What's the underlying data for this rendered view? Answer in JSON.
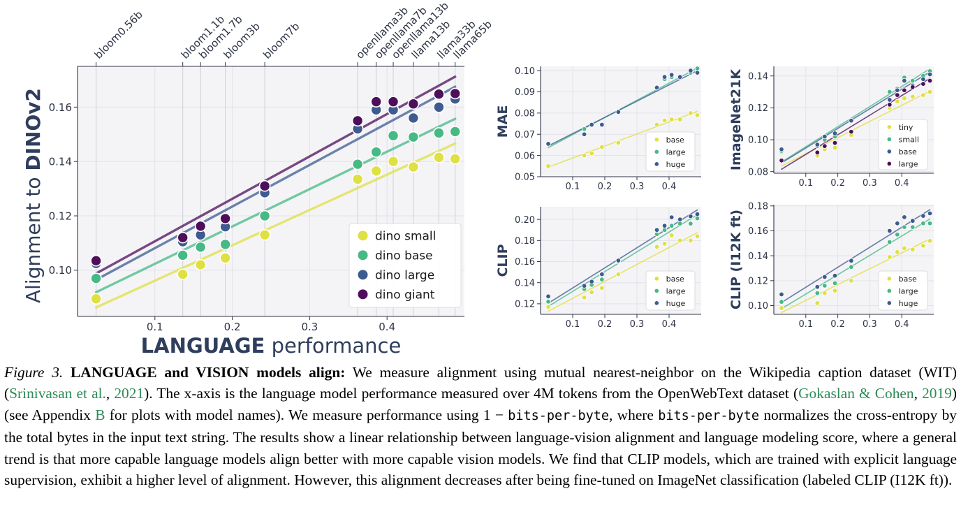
{
  "chart_data": [
    {
      "type": "scatter",
      "id": "main",
      "title": "",
      "xlabel_bold": "LANGUAGE",
      "xlabel_rest": " performance",
      "ylabel_prefix": "Alignment to ",
      "ylabel_bold": "DINOv2",
      "xlim": [
        0.0,
        0.5
      ],
      "ylim": [
        0.083,
        0.175
      ],
      "xticks": [
        0.1,
        0.2,
        0.3,
        0.4
      ],
      "xtick_labels": [
        "0.1",
        "0.2",
        "0.3",
        "0.4"
      ],
      "yticks": [
        0.1,
        0.12,
        0.14,
        0.16
      ],
      "ytick_labels": [
        "0.10",
        "0.12",
        "0.14",
        "0.16"
      ],
      "legend_position": "bottom-right",
      "top_models": [
        {
          "name": "bloom0.56b",
          "x": 0.024
        },
        {
          "name": "bloom1.1b",
          "x": 0.136
        },
        {
          "name": "bloom1.7b",
          "x": 0.159
        },
        {
          "name": "bloom3b",
          "x": 0.191
        },
        {
          "name": "bloom7b",
          "x": 0.242
        },
        {
          "name": "openllama3b",
          "x": 0.362
        },
        {
          "name": "openllama7b",
          "x": 0.386
        },
        {
          "name": "openllama13b",
          "x": 0.408
        },
        {
          "name": "llama13b",
          "x": 0.434
        },
        {
          "name": "llama33b",
          "x": 0.467
        },
        {
          "name": "llama65b",
          "x": 0.488
        }
      ],
      "x": [
        0.024,
        0.136,
        0.159,
        0.191,
        0.242,
        0.362,
        0.386,
        0.408,
        0.434,
        0.467,
        0.488
      ],
      "series": [
        {
          "name": "dino small",
          "color": "#dfe044",
          "values": [
            0.0895,
            0.0985,
            0.102,
            0.1045,
            0.113,
            0.1335,
            0.1365,
            0.14,
            0.138,
            0.1415,
            0.141
          ],
          "fit": [
            0.0863,
            0.1466
          ]
        },
        {
          "name": "dino base",
          "color": "#46b985",
          "values": [
            0.097,
            0.1055,
            0.1085,
            0.1095,
            0.12,
            0.139,
            0.1435,
            0.1495,
            0.149,
            0.1505,
            0.151
          ],
          "fit": [
            0.0919,
            0.1557
          ]
        },
        {
          "name": "dino large",
          "color": "#3e5b8f",
          "values": [
            0.1025,
            0.1105,
            0.113,
            0.116,
            0.1285,
            0.152,
            0.159,
            0.159,
            0.156,
            0.16,
            0.163
          ],
          "fit": [
            0.0965,
            0.1675
          ]
        },
        {
          "name": "dino giant",
          "color": "#4e0f5a",
          "values": [
            0.1035,
            0.112,
            0.1162,
            0.119,
            0.131,
            0.155,
            0.162,
            0.162,
            0.1612,
            0.1648,
            0.165
          ],
          "fit": [
            0.0988,
            0.1712
          ]
        }
      ]
    },
    {
      "type": "scatter",
      "id": "mae",
      "ylabel": "MAE",
      "xlim": [
        0.0,
        0.5
      ],
      "ylim": [
        0.05,
        0.102
      ],
      "xticks": [
        0.1,
        0.2,
        0.3,
        0.4
      ],
      "xtick_labels": [
        "0.1",
        "0.2",
        "0.3",
        "0.4"
      ],
      "yticks": [
        0.05,
        0.06,
        0.07,
        0.08,
        0.09,
        0.1
      ],
      "ytick_labels": [
        "0.05",
        "0.06",
        "0.07",
        "0.08",
        "0.09",
        "0.10"
      ],
      "legend_position": "bottom-right",
      "x": [
        0.024,
        0.136,
        0.159,
        0.191,
        0.242,
        0.362,
        0.386,
        0.408,
        0.434,
        0.467,
        0.488
      ],
      "series": [
        {
          "name": "base",
          "color": "#dfe044",
          "values": [
            0.055,
            0.06,
            0.061,
            0.064,
            0.066,
            0.0745,
            0.0765,
            0.077,
            0.077,
            0.08,
            0.079
          ],
          "fit": [
            0.0545,
            0.0808
          ]
        },
        {
          "name": "large",
          "color": "#46b985",
          "values": [
            0.0655,
            0.0725,
            0.0745,
            0.0745,
            0.0805,
            0.092,
            0.096,
            0.097,
            0.097,
            0.099,
            0.101
          ],
          "fit": [
            0.0637,
            0.1012
          ]
        },
        {
          "name": "huge",
          "color": "#3e5b8f",
          "values": [
            0.0655,
            0.07,
            0.0745,
            0.0745,
            0.0805,
            0.092,
            0.097,
            0.098,
            0.097,
            0.1,
            0.099
          ],
          "fit": [
            0.0645,
            0.1
          ]
        }
      ]
    },
    {
      "type": "scatter",
      "id": "imagenet21k",
      "ylabel": "ImageNet21K",
      "xlim": [
        0.0,
        0.5
      ],
      "ylim": [
        0.079,
        0.146
      ],
      "xticks": [
        0.1,
        0.2,
        0.3,
        0.4
      ],
      "xtick_labels": [
        "0.1",
        "0.2",
        "0.3",
        "0.4"
      ],
      "yticks": [
        0.08,
        0.1,
        0.12,
        0.14
      ],
      "ytick_labels": [
        "0.08",
        "0.10",
        "0.12",
        "0.14"
      ],
      "legend_position": "bottom-right",
      "x": [
        0.024,
        0.136,
        0.159,
        0.191,
        0.242,
        0.362,
        0.386,
        0.408,
        0.434,
        0.467,
        0.488
      ],
      "series": [
        {
          "name": "tiny",
          "color": "#dfe044",
          "values": [
            0.092,
            0.09,
            0.094,
            0.095,
            0.103,
            0.12,
            0.124,
            0.126,
            0.127,
            0.128,
            0.13
          ],
          "fit": [
            0.0835,
            0.1305
          ]
        },
        {
          "name": "small",
          "color": "#46b985",
          "values": [
            0.093,
            0.096,
            0.1,
            0.102,
            0.112,
            0.13,
            0.132,
            0.139,
            0.137,
            0.14,
            0.143
          ],
          "fit": [
            0.086,
            0.1445
          ]
        },
        {
          "name": "base",
          "color": "#3e5b8f",
          "values": [
            0.094,
            0.097,
            0.102,
            0.104,
            0.112,
            0.125,
            0.131,
            0.137,
            0.134,
            0.138,
            0.141
          ],
          "fit": [
            0.0855,
            0.1425
          ]
        },
        {
          "name": "large",
          "color": "#4e0f5a",
          "values": [
            0.087,
            0.092,
            0.096,
            0.098,
            0.105,
            0.122,
            0.128,
            0.131,
            0.133,
            0.135,
            0.137
          ],
          "fit": [
            0.0815,
            0.1385
          ]
        }
      ]
    },
    {
      "type": "scatter",
      "id": "clip",
      "ylabel": "CLIP",
      "xlim": [
        0.0,
        0.5
      ],
      "ylim": [
        0.11,
        0.212
      ],
      "xticks": [
        0.1,
        0.2,
        0.3,
        0.4
      ],
      "xtick_labels": [
        "0.1",
        "0.2",
        "0.3",
        "0.4"
      ],
      "yticks": [
        0.12,
        0.14,
        0.16,
        0.18,
        0.2
      ],
      "ytick_labels": [
        "0.12",
        "0.14",
        "0.16",
        "0.18",
        "0.20"
      ],
      "legend_position": "bottom-right",
      "x": [
        0.024,
        0.136,
        0.159,
        0.191,
        0.242,
        0.362,
        0.386,
        0.408,
        0.434,
        0.467,
        0.488
      ],
      "series": [
        {
          "name": "base",
          "color": "#dfe044",
          "values": [
            0.117,
            0.126,
            0.131,
            0.135,
            0.148,
            0.174,
            0.177,
            0.185,
            0.18,
            0.18,
            0.184
          ],
          "fit": [
            0.113,
            0.1875
          ]
        },
        {
          "name": "large",
          "color": "#46b985",
          "values": [
            0.122,
            0.134,
            0.138,
            0.143,
            0.16,
            0.186,
            0.19,
            0.194,
            0.196,
            0.196,
            0.201
          ],
          "fit": [
            0.1175,
            0.2045
          ]
        },
        {
          "name": "huge",
          "color": "#3e5b8f",
          "values": [
            0.127,
            0.137,
            0.141,
            0.148,
            0.161,
            0.19,
            0.194,
            0.202,
            0.2,
            0.203,
            0.205
          ],
          "fit": [
            0.1205,
            0.209
          ]
        }
      ]
    },
    {
      "type": "scatter",
      "id": "clip_i12k",
      "ylabel": "CLIP (I12K ft)",
      "xlim": [
        0.0,
        0.5
      ],
      "ylim": [
        0.093,
        0.181
      ],
      "xticks": [
        0.1,
        0.2,
        0.3,
        0.4
      ],
      "xtick_labels": [
        "0.1",
        "0.2",
        "0.3",
        "0.4"
      ],
      "yticks": [
        0.1,
        0.12,
        0.14,
        0.16,
        0.18
      ],
      "ytick_labels": [
        "0.10",
        "0.12",
        "0.14",
        "0.16",
        "0.18"
      ],
      "legend_position": "bottom-right",
      "x": [
        0.024,
        0.136,
        0.159,
        0.191,
        0.242,
        0.362,
        0.386,
        0.408,
        0.434,
        0.467,
        0.488
      ],
      "series": [
        {
          "name": "base",
          "color": "#dfe044",
          "values": [
            0.098,
            0.102,
            0.11,
            0.112,
            0.12,
            0.139,
            0.143,
            0.146,
            0.145,
            0.148,
            0.152
          ],
          "fit": [
            0.0945,
            0.1535
          ]
        },
        {
          "name": "large",
          "color": "#46b985",
          "values": [
            0.103,
            0.11,
            0.116,
            0.118,
            0.131,
            0.151,
            0.157,
            0.163,
            0.163,
            0.166,
            0.166
          ],
          "fit": [
            0.0975,
            0.1695
          ]
        },
        {
          "name": "huge",
          "color": "#3e5b8f",
          "values": [
            0.109,
            0.115,
            0.123,
            0.124,
            0.136,
            0.16,
            0.166,
            0.171,
            0.168,
            0.172,
            0.174
          ],
          "fit": [
            0.1025,
            0.177
          ]
        }
      ]
    }
  ],
  "caption": {
    "label": "Figure 3.",
    "bold": "LANGUAGE and VISION models align:",
    "t1": " We measure alignment using mutual nearest-neighbor on the Wikipedia caption dataset (WIT) (",
    "cite1": "Srinivasan et al.",
    "t2": ", ",
    "cite1_year": "2021",
    "t3": "). The x-axis is the language model performance measured over 4M tokens from the OpenWebText dataset (",
    "cite2": "Gokaslan & Cohen",
    "t4": ", ",
    "cite2_year": "2019",
    "t5": ") (see Appendix ",
    "appendix": "B",
    "t6": " for plots with model names). We measure performance using 1 − ",
    "code1": "bits-per-byte",
    "t7": ", where ",
    "code2": "bits-per-byte",
    "t8": " normalizes the cross-entropy by the total bytes in the input text string. The results show a linear relationship between language-vision alignment and language modeling score, where a general trend is that more capable language models align better with more capable vision models. We find that CLIP models, which are trained with explicit language supervision, exhibit a higher level of alignment. However, this alignment decreases after being fine-tuned on ImageNet classification (labeled CLIP (I12K ft))."
  }
}
